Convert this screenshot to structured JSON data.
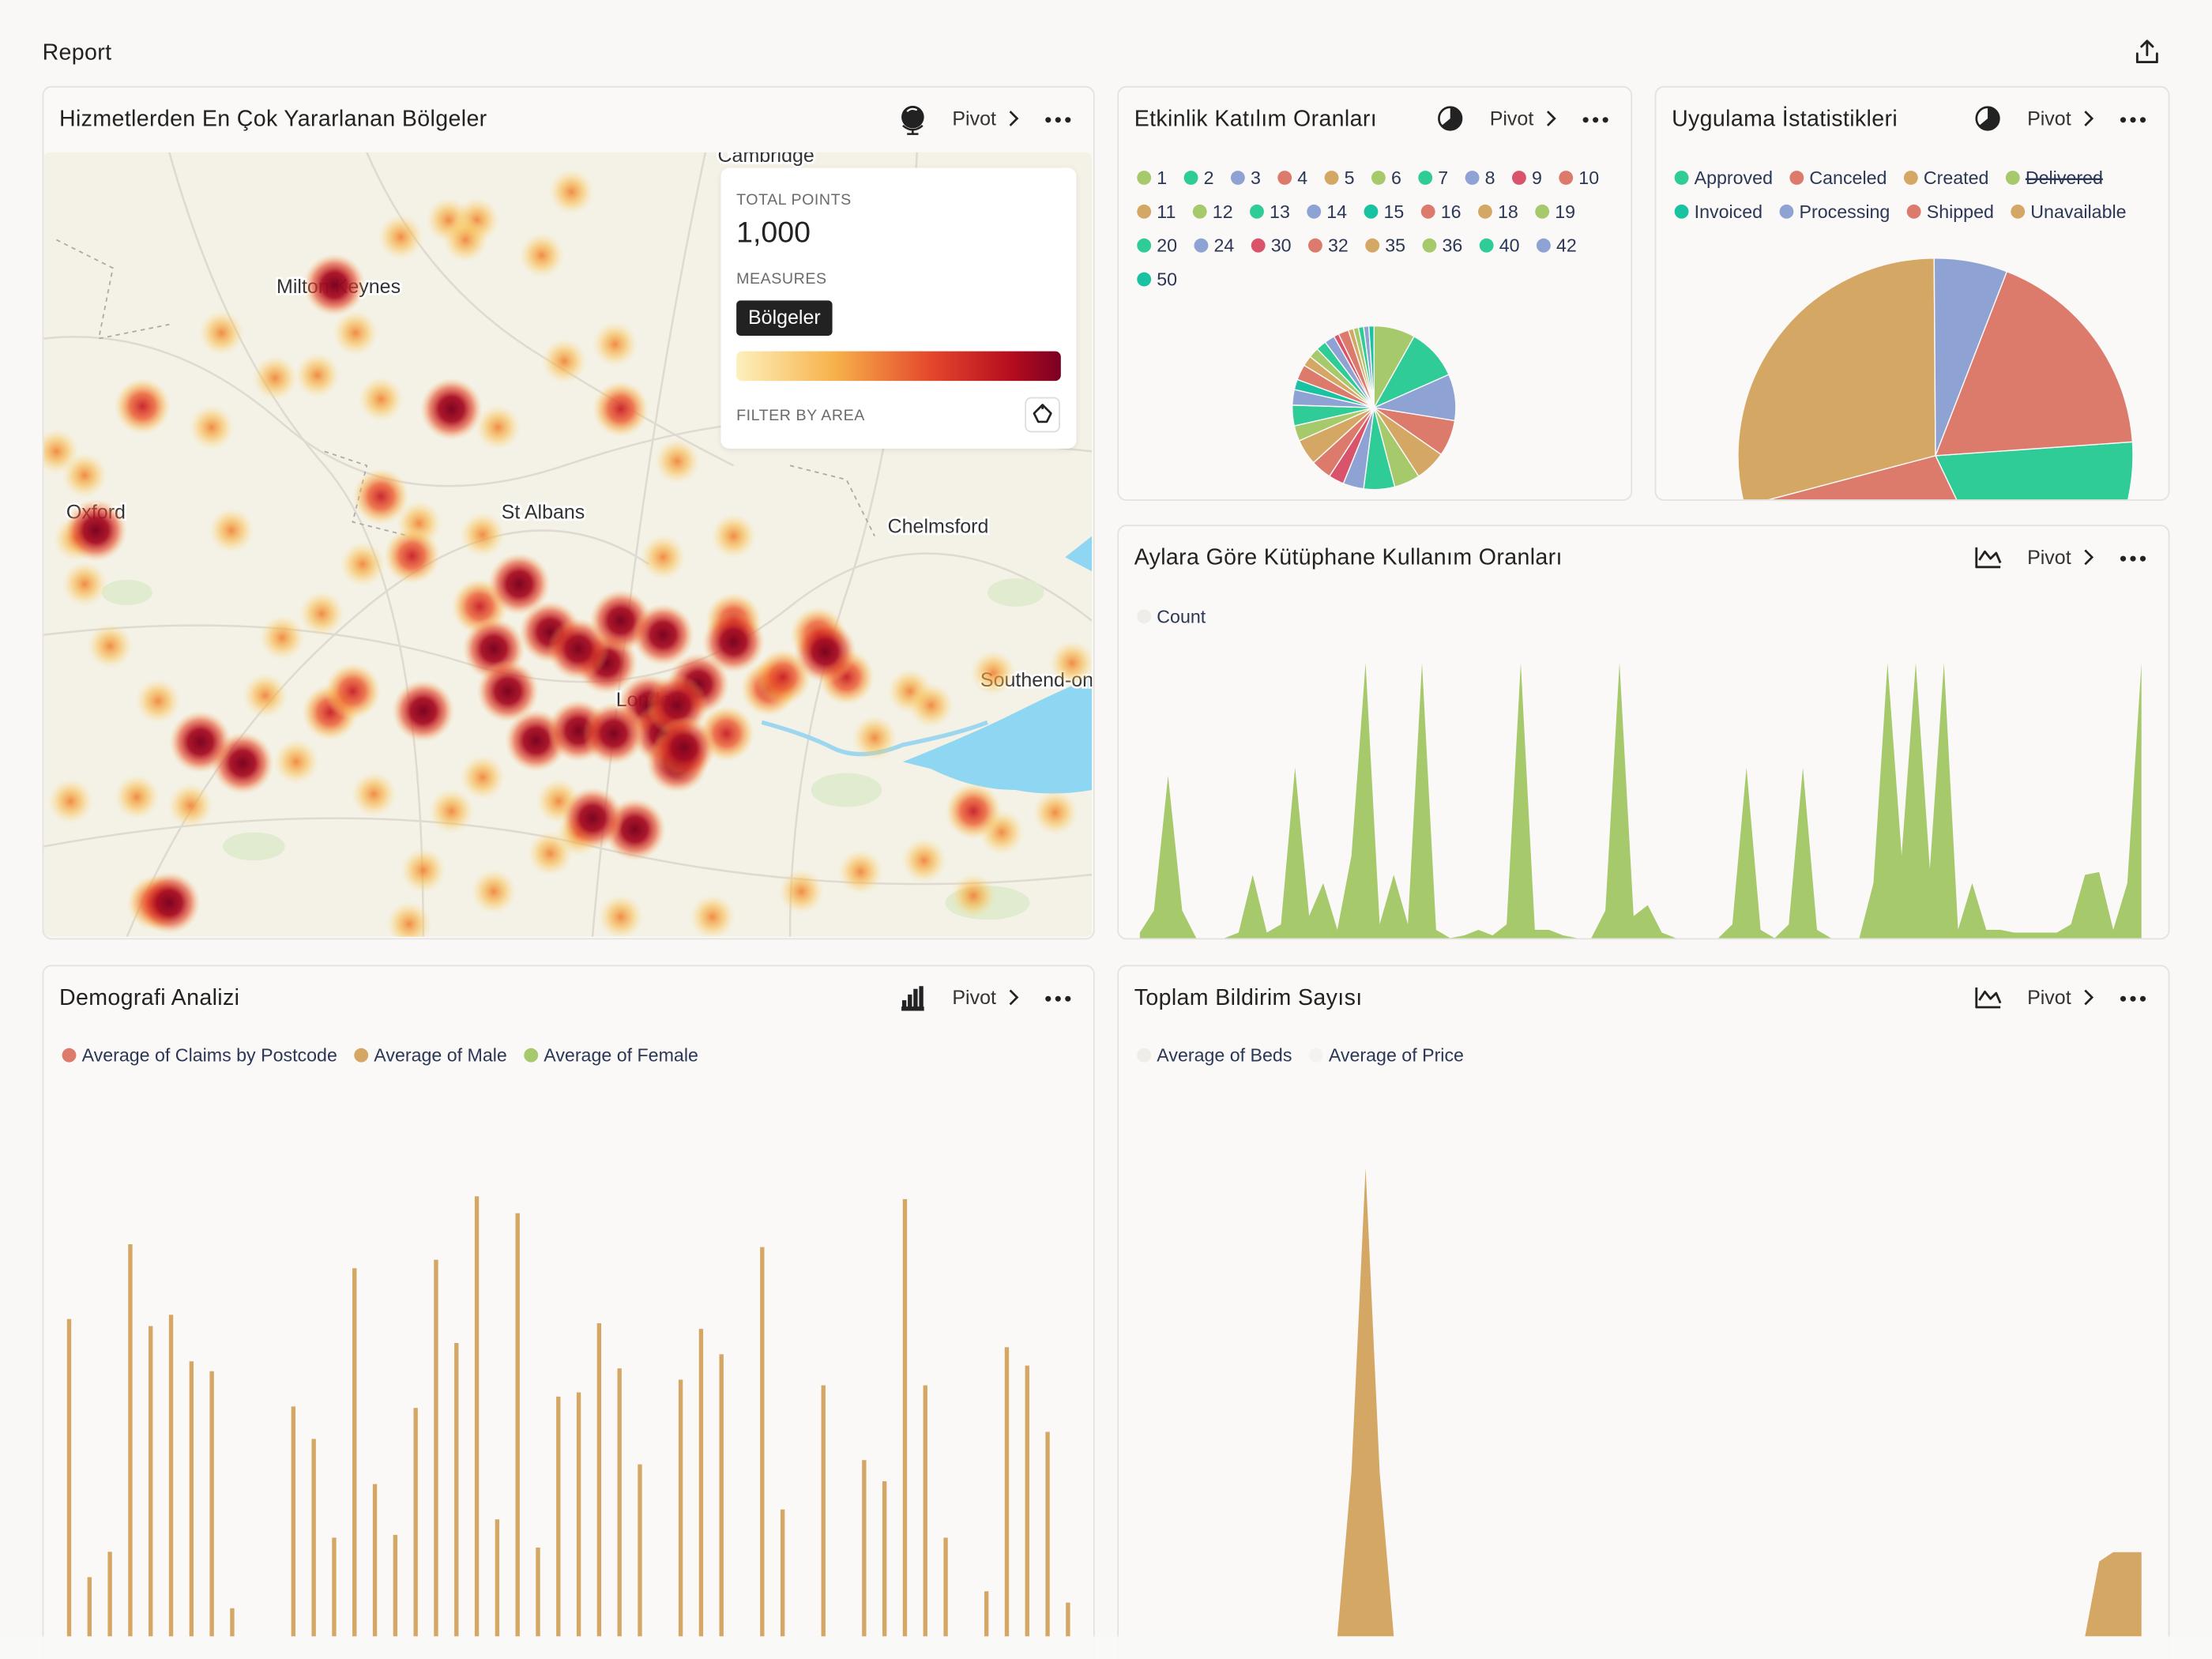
{
  "header": {
    "title": "Report"
  },
  "panels": [
    {
      "title": "Hizmetlerden En Çok Yararlanan Bölgeler",
      "pivot": "Pivot",
      "map": {
        "places": [
          "Cambridge",
          "Milton Keynes",
          "Oxford",
          "St Albans",
          "Chelmsford",
          "Southend-on",
          "London"
        ],
        "tooltip": {
          "total_label": "TOTAL POINTS",
          "total": {
            "value": 1000,
            "label": "1,000"
          },
          "measures_label": "MEASURES",
          "measure": "Bölgeler",
          "filter_label": "FILTER BY AREA"
        }
      }
    },
    {
      "title": "Etkinlik Katılım Oranları",
      "pivot": "Pivot",
      "chart": {
        "type": "pie",
        "categories": [
          "1",
          "2",
          "3",
          "4",
          "5",
          "6",
          "7",
          "8",
          "9",
          "10",
          "11",
          "12",
          "13",
          "14",
          "15",
          "16",
          "18",
          "19",
          "20",
          "24",
          "30",
          "32",
          "35",
          "36",
          "40",
          "42",
          "50"
        ],
        "colors": [
          "#a5c96b",
          "#2fcc98",
          "#8fa2d4",
          "#dc7a6c",
          "#d4a765",
          "#a5c96b",
          "#2fcc98",
          "#8fa2d4",
          "#d9536b",
          "#dc7a6c",
          "#d4a765",
          "#a5c96b",
          "#2fcc98",
          "#8fa2d4",
          "#19c2a0",
          "#dc7a6c",
          "#d4a765",
          "#a5c96b",
          "#2fcc98",
          "#8fa2d4",
          "#d9536b",
          "#dc7a6c",
          "#d4a765",
          "#a5c96b",
          "#2fcc98",
          "#8fa2d4",
          "#19c2a0"
        ],
        "values": [
          8,
          10,
          9,
          7,
          6,
          5,
          6,
          4,
          3,
          4,
          5,
          3,
          4,
          3,
          2,
          3,
          2,
          2,
          2,
          2,
          1,
          2,
          1,
          1,
          1,
          1,
          1
        ]
      }
    },
    {
      "title": "Uygulama İstatistikleri",
      "pivot": "Pivot",
      "chart": {
        "type": "pie",
        "categories": [
          "Approved",
          "Canceled",
          "Created",
          "Delivered",
          "Invoiced",
          "Processing",
          "Shipped",
          "Unavailable"
        ],
        "colors": [
          "#2fcc98",
          "#dc7a6c",
          "#d4a765",
          "#a5c96b",
          "#19c2a0",
          "#8fa2d4",
          "#dc7a6c",
          "#d4a765"
        ],
        "hidden": [
          false,
          false,
          false,
          true,
          false,
          false,
          false,
          false
        ],
        "values": [
          19,
          28,
          29,
          null,
          null,
          6,
          18,
          null
        ]
      }
    },
    {
      "title": "Aylara Göre Kütüphane Kullanım Oranları",
      "pivot": "Pivot",
      "chart": {
        "type": "area",
        "ylim": [
          0,
          100
        ],
        "series": [
          {
            "name": "Count",
            "color": "#eeede9",
            "fill": "#a5c96b",
            "values": [
              2,
              10,
              59,
              10,
              0,
              0,
              0,
              2,
              23,
              2,
              5,
              62,
              8,
              20,
              3,
              30,
              100,
              5,
              23,
              5,
              100,
              3,
              0,
              1,
              3,
              1,
              5,
              100,
              3,
              3,
              1,
              0,
              0,
              10,
              100,
              8,
              12,
              2,
              0,
              0,
              0,
              0,
              5,
              62,
              3,
              0,
              5,
              62,
              3,
              0,
              0,
              0,
              20,
              100,
              30,
              100,
              25,
              100,
              3,
              20,
              3,
              3,
              2,
              2,
              2,
              2,
              5,
              23,
              24,
              3,
              20,
              100
            ]
          }
        ]
      }
    },
    {
      "title": "Demografi Analizi",
      "pivot": "Pivot",
      "chart": {
        "type": "bar",
        "ylim": [
          0,
          330
        ],
        "series": [
          {
            "name": "Average of Claims by Postcode",
            "color": "#dc7a6c"
          },
          {
            "name": "Average of Male",
            "color": "#d4a765",
            "values": [
              225,
              42,
              60,
              278,
              220,
              228,
              195,
              188,
              20,
              null,
              null,
              163,
              140,
              70,
              261,
              108,
              72,
              162,
              267,
              208,
              312,
              83,
              300,
              63,
              170,
              173,
              222,
              190,
              122,
              null,
              182,
              218,
              200,
              null,
              276,
              90,
              null,
              178,
              null,
              125,
              110,
              310,
              178,
              70,
              null,
              32,
              205,
              192,
              145,
              24
            ]
          },
          {
            "name": "Average of Female",
            "color": "#a5c96b"
          }
        ]
      }
    },
    {
      "title": "Toplam Bildirim Sayısı",
      "pivot": "Pivot",
      "chart": {
        "type": "area",
        "ylim": [
          0,
          100
        ],
        "series": [
          {
            "name": "Average of Beds",
            "color": "#eeede9",
            "fill": "#d4a765",
            "values": [
              0,
              0,
              0,
              0,
              0,
              0,
              0,
              0,
              0,
              0,
              0,
              0,
              0,
              0,
              0,
              35,
              100,
              35,
              0,
              0,
              0,
              0,
              0,
              0,
              0,
              0,
              0,
              0,
              0,
              0,
              0,
              0,
              0,
              0,
              0,
              0,
              0,
              0,
              0,
              0,
              0,
              0,
              0,
              0,
              0,
              0,
              0,
              0,
              0,
              0,
              0,
              0,
              0,
              0,
              0,
              0,
              0,
              0,
              0,
              0,
              0,
              0,
              0,
              0,
              0,
              0,
              0,
              0,
              16,
              18,
              18,
              18
            ]
          },
          {
            "name": "Average of Price",
            "color": "#f3f2ee"
          }
        ]
      }
    }
  ]
}
